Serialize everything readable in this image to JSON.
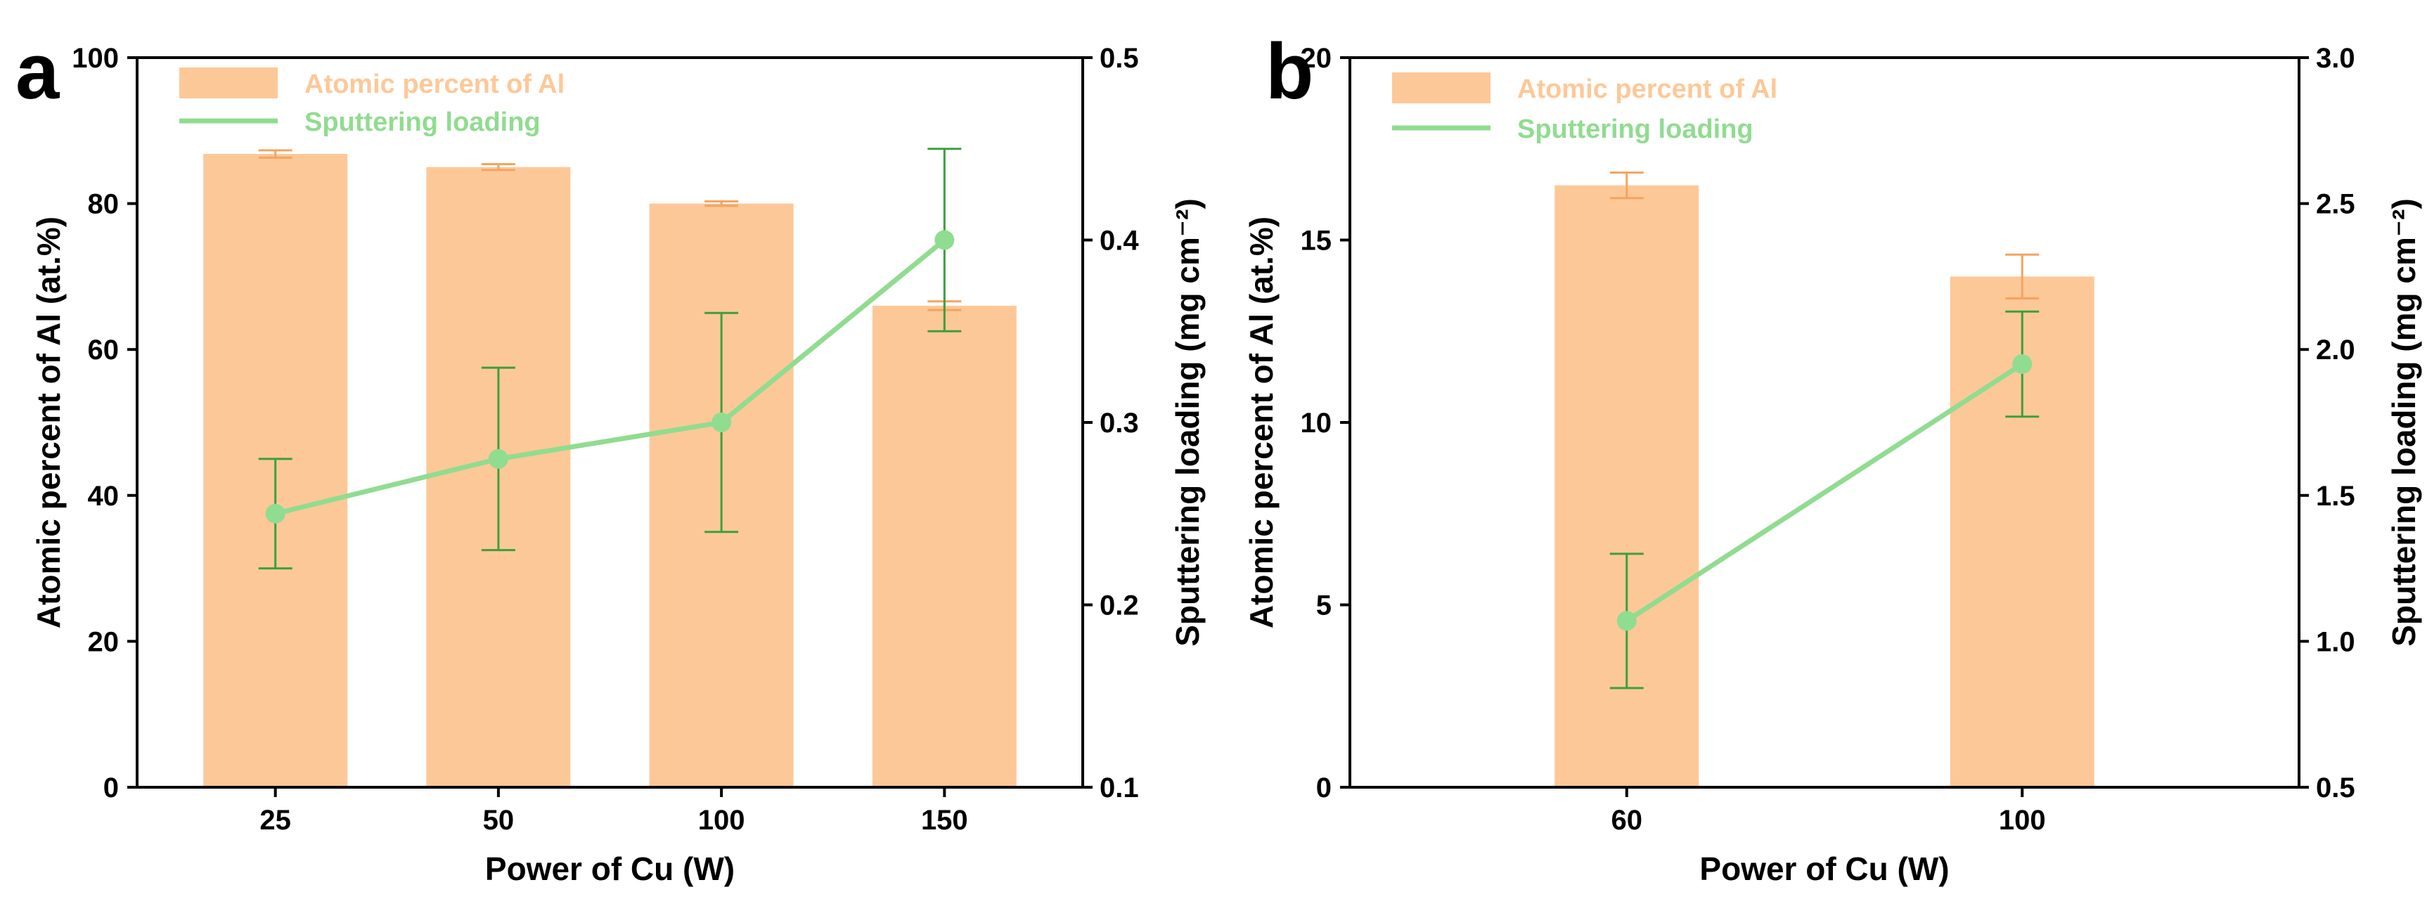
{
  "chart_data": [
    {
      "panel": "a",
      "type": "bar",
      "categories": [
        "25",
        "50",
        "100",
        "150"
      ],
      "xlabel": "Power of Cu (W)",
      "ylabel": "Atomic percent of Al (at.%)",
      "y2label": "Sputtering loading (mg cm⁻²)",
      "ylim": [
        0,
        100
      ],
      "yticks": [
        "0",
        "20",
        "40",
        "60",
        "80",
        "100"
      ],
      "y2lim": [
        0.1,
        0.5
      ],
      "y2ticks": [
        "0.1",
        "0.2",
        "0.3",
        "0.4",
        "0.5"
      ],
      "legend_position": "top-left",
      "series": [
        {
          "name": "Atomic percent of Al",
          "kind": "bar",
          "axis": "left",
          "color": "#FDC898",
          "error_color": "#F4A460",
          "values": [
            86.8,
            85.0,
            80.0,
            66.0
          ],
          "errors": [
            0.5,
            0.4,
            0.3,
            0.6
          ]
        },
        {
          "name": "Sputtering loading",
          "kind": "line",
          "axis": "right",
          "color": "#90DC90",
          "error_color": "#3CA03C",
          "values": [
            0.25,
            0.28,
            0.3,
            0.4
          ],
          "errors": [
            0.03,
            0.05,
            0.06,
            0.05
          ]
        }
      ]
    },
    {
      "panel": "b",
      "type": "bar",
      "categories": [
        "60",
        "100"
      ],
      "xlabel": "Power of Cu (W)",
      "ylabel": "Atomic percent of Al (at.%)",
      "y2label": "Sputtering loading (mg cm⁻²)",
      "ylim": [
        0,
        20
      ],
      "yticks": [
        "0",
        "5",
        "10",
        "15",
        "20"
      ],
      "y2lim": [
        0.5,
        3.0
      ],
      "y2ticks": [
        "0.5",
        "1.0",
        "1.5",
        "2.0",
        "2.5",
        "3.0"
      ],
      "legend_position": "top-left",
      "series": [
        {
          "name": "Atomic percent of Al",
          "kind": "bar",
          "axis": "left",
          "color": "#FDC898",
          "error_color": "#F4A460",
          "values": [
            16.5,
            14.0
          ],
          "errors": [
            0.35,
            0.6
          ]
        },
        {
          "name": "Sputtering loading",
          "kind": "line",
          "axis": "right",
          "color": "#90DC90",
          "error_color": "#3CA03C",
          "values": [
            1.07,
            1.95
          ],
          "errors": [
            0.23,
            0.18
          ]
        }
      ]
    }
  ]
}
